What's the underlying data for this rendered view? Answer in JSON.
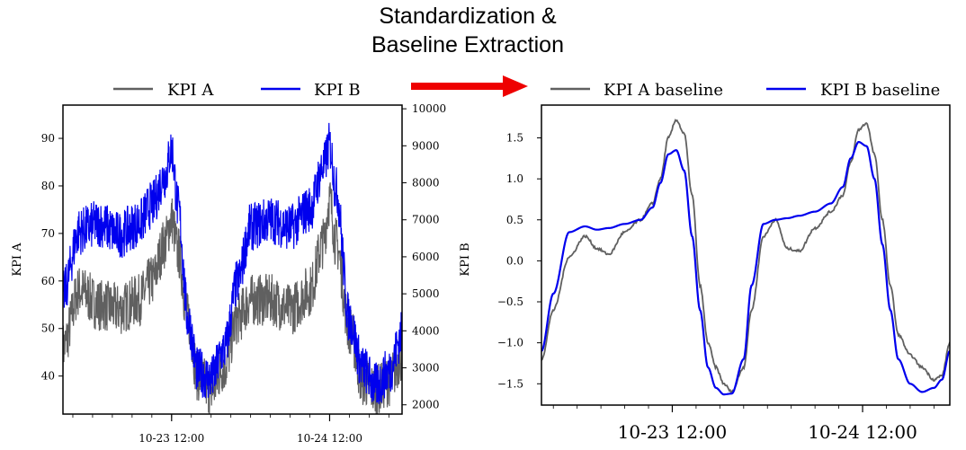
{
  "header": {
    "title_line1": "Standardization &",
    "title_line2": "Baseline Extraction"
  },
  "colors": {
    "kpi_a": "#606060",
    "kpi_b": "#0000ee",
    "arrow": "#ee0000"
  },
  "chart_data": [
    {
      "type": "line",
      "legend": [
        "KPI A",
        "KPI B"
      ],
      "legend_position": "top",
      "ylabel_left": "KPI A",
      "ylabel_right": "KPI B",
      "ylim_left": [
        32,
        97
      ],
      "ylim_right": [
        1750,
        10100
      ],
      "yticks_left": [
        40,
        50,
        60,
        70,
        80,
        90
      ],
      "yticks_right": [
        2000,
        3000,
        4000,
        5000,
        6000,
        7000,
        8000,
        9000,
        10000
      ],
      "xlim": [
        "10-22 19:30",
        "10-24 23:00"
      ],
      "xticks": [
        "10-23 12:00",
        "10-24 12:00"
      ],
      "grid": false,
      "series": [
        {
          "name": "KPI A",
          "axis": "left",
          "x": [
            "10-22 19:30",
            "10-22 22:00",
            "10-23 01:00",
            "10-23 04:00",
            "10-23 07:00",
            "10-23 09:00",
            "10-23 11:00",
            "10-23 12:00",
            "10-23 13:00",
            "10-23 14:30",
            "10-23 16:00",
            "10-23 18:00",
            "10-23 20:00",
            "10-23 22:00",
            "10-24 00:00",
            "10-24 03:00",
            "10-24 06:00",
            "10-24 09:00",
            "10-24 11:00",
            "10-24 12:00",
            "10-24 13:00",
            "10-24 15:00",
            "10-24 17:00",
            "10-24 19:00",
            "10-24 21:00",
            "10-24 23:00"
          ],
          "values": [
            46,
            58,
            55,
            54,
            56,
            60,
            68,
            73,
            66,
            52,
            40,
            37,
            42,
            52,
            56,
            56,
            54,
            58,
            68,
            77,
            68,
            50,
            39,
            37,
            39,
            44
          ]
        },
        {
          "name": "KPI B",
          "axis": "right",
          "x": [
            "10-22 19:30",
            "10-22 22:00",
            "10-23 01:00",
            "10-23 04:00",
            "10-23 07:00",
            "10-23 09:00",
            "10-23 11:00",
            "10-23 12:00",
            "10-23 13:00",
            "10-23 14:30",
            "10-23 16:00",
            "10-23 18:00",
            "10-23 20:00",
            "10-23 22:00",
            "10-24 00:00",
            "10-24 03:00",
            "10-24 06:00",
            "10-24 09:00",
            "10-24 11:00",
            "10-24 12:00",
            "10-24 13:00",
            "10-24 15:00",
            "10-24 17:00",
            "10-24 19:00",
            "10-24 21:00",
            "10-24 23:00"
          ],
          "values": [
            5000,
            6700,
            6900,
            6600,
            6900,
            7400,
            8200,
            8900,
            7300,
            4300,
            2900,
            2700,
            3500,
            5300,
            6800,
            7000,
            6800,
            7300,
            8400,
            9000,
            7800,
            4300,
            3000,
            2500,
            2900,
            3900
          ]
        }
      ]
    },
    {
      "type": "line",
      "legend": [
        "KPI A baseline",
        "KPI B baseline"
      ],
      "legend_position": "top",
      "ylim": [
        -1.76,
        1.9
      ],
      "yticks": [
        1.5,
        1.0,
        0.5,
        0.0,
        -0.5,
        -1.0,
        -1.5
      ],
      "ytick_labels": [
        "1.5",
        "1.0",
        "0.5",
        "0.0",
        "−0.5",
        "−1.0",
        "−1.5"
      ],
      "xlim": [
        "10-22 19:30",
        "10-24 23:00"
      ],
      "xticks": [
        "10-23 12:00",
        "10-24 12:00"
      ],
      "grid": false,
      "series": [
        {
          "name": "KPI A baseline",
          "x": [
            "10-22 19:30",
            "10-22 21:00",
            "10-22 23:00",
            "10-23 01:00",
            "10-23 02:30",
            "10-23 04:00",
            "10-23 06:00",
            "10-23 08:00",
            "10-23 09:30",
            "10-23 10:30",
            "10-23 11:30",
            "10-23 12:30",
            "10-23 13:30",
            "10-23 14:30",
            "10-23 15:30",
            "10-23 16:30",
            "10-23 17:30",
            "10-23 18:30",
            "10-23 19:30",
            "10-23 21:00",
            "10-23 22:00",
            "10-23 23:30",
            "10-24 01:00",
            "10-24 02:30",
            "10-24 04:00",
            "10-24 06:00",
            "10-24 08:00",
            "10-24 09:30",
            "10-24 10:30",
            "10-24 11:30",
            "10-24 12:30",
            "10-24 13:30",
            "10-24 14:30",
            "10-24 15:30",
            "10-24 16:30",
            "10-24 18:00",
            "10-24 19:30",
            "10-24 21:00",
            "10-24 22:00",
            "10-24 23:00"
          ],
          "values": [
            -1.2,
            -0.6,
            0.05,
            0.3,
            0.15,
            0.08,
            0.35,
            0.5,
            0.7,
            1.0,
            1.5,
            1.72,
            1.55,
            0.8,
            -0.3,
            -1.0,
            -1.3,
            -1.5,
            -1.6,
            -1.3,
            -0.6,
            0.3,
            0.5,
            0.15,
            0.12,
            0.4,
            0.6,
            0.8,
            1.2,
            1.6,
            1.68,
            1.3,
            0.5,
            -0.3,
            -0.9,
            -1.15,
            -1.3,
            -1.45,
            -1.4,
            -1.0
          ]
        },
        {
          "name": "KPI B baseline",
          "x": [
            "10-22 19:30",
            "10-22 21:00",
            "10-22 23:00",
            "10-23 01:00",
            "10-23 02:30",
            "10-23 04:00",
            "10-23 06:00",
            "10-23 08:00",
            "10-23 09:30",
            "10-23 10:30",
            "10-23 11:30",
            "10-23 12:30",
            "10-23 13:30",
            "10-23 14:30",
            "10-23 15:30",
            "10-23 16:30",
            "10-23 17:30",
            "10-23 18:30",
            "10-23 19:30",
            "10-23 21:00",
            "10-23 22:00",
            "10-23 23:30",
            "10-24 01:00",
            "10-24 02:30",
            "10-24 04:00",
            "10-24 06:00",
            "10-24 08:00",
            "10-24 09:30",
            "10-24 10:30",
            "10-24 11:30",
            "10-24 12:30",
            "10-24 13:30",
            "10-24 14:30",
            "10-24 15:30",
            "10-24 16:30",
            "10-24 18:00",
            "10-24 19:30",
            "10-24 21:00",
            "10-24 22:00",
            "10-24 23:00"
          ],
          "values": [
            -1.1,
            -0.4,
            0.35,
            0.42,
            0.38,
            0.4,
            0.45,
            0.5,
            0.65,
            0.95,
            1.3,
            1.35,
            1.1,
            0.3,
            -0.6,
            -1.3,
            -1.55,
            -1.63,
            -1.62,
            -1.2,
            -0.3,
            0.45,
            0.5,
            0.52,
            0.55,
            0.6,
            0.7,
            0.9,
            1.25,
            1.45,
            1.4,
            1.0,
            0.2,
            -0.6,
            -1.2,
            -1.5,
            -1.6,
            -1.55,
            -1.45,
            -1.1
          ]
        }
      ]
    }
  ]
}
